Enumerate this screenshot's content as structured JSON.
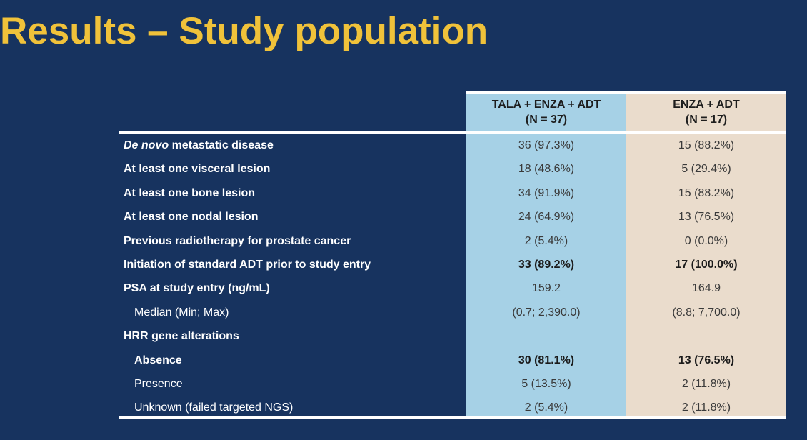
{
  "title": "Results – Study population",
  "columns": [
    {
      "line1": "TALA + ENZA + ADT",
      "line2": "(N = 37)"
    },
    {
      "line1": "ENZA + ADT",
      "line2": "(N = 17)"
    }
  ],
  "rows": [
    {
      "label_italic": "De novo",
      "label": " metastatic disease",
      "v1": "36 (97.3%)",
      "v2": "15 (88.2%)"
    },
    {
      "label_italic": "",
      "label": "At least one visceral lesion",
      "v1": "18 (48.6%)",
      "v2": "5 (29.4%)"
    },
    {
      "label_italic": "",
      "label": "At least one bone lesion",
      "v1": "34 (91.9%)",
      "v2": "15 (88.2%)"
    },
    {
      "label_italic": "",
      "label": "At least one nodal lesion",
      "v1": "24 (64.9%)",
      "v2": "13 (76.5%)"
    },
    {
      "label_italic": "",
      "label": "Previous radiotherapy for prostate cancer",
      "v1": "2 (5.4%)",
      "v2": "0 (0.0%)"
    },
    {
      "label_italic": "",
      "label": "Initiation of standard ADT prior to study entry",
      "v1": "33 (89.2%)",
      "v2": "17 (100.0%)"
    },
    {
      "label_italic": "",
      "label": "PSA at study entry (ng/mL)",
      "v1": "159.2",
      "v2": "164.9"
    },
    {
      "label_italic": "",
      "label": "Median (Min; Max)",
      "v1": "(0.7; 2,390.0)",
      "v2": "(8.8; 7,700.0)"
    },
    {
      "label_italic": "",
      "label": "HRR gene alterations",
      "v1": "",
      "v2": ""
    },
    {
      "label_italic": "",
      "label": "Absence",
      "v1": "30 (81.1%)",
      "v2": "13 (76.5%)"
    },
    {
      "label_italic": "",
      "label": "Presence",
      "v1": "5 (13.5%)",
      "v2": "2 (11.8%)"
    },
    {
      "label_italic": "",
      "label": "Unknown (failed targeted NGS)",
      "v1": "2 (5.4%)",
      "v2": "2 (11.8%)"
    }
  ],
  "colors": {
    "background": "#17335f",
    "title": "#f0c23a",
    "tala_column": "#a6d1e6",
    "enza_column": "#eadccc"
  }
}
